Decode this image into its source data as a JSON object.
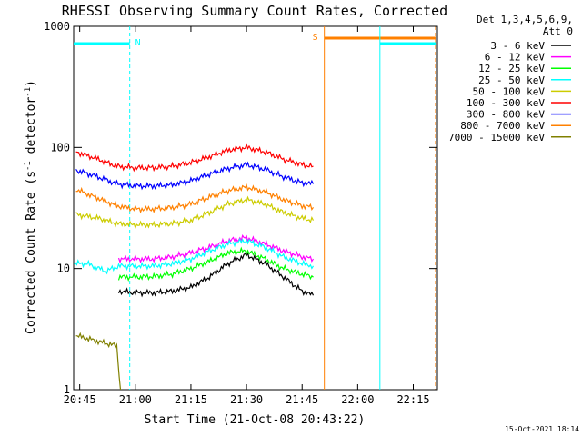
{
  "chart_data": {
    "type": "line",
    "title": "RHESSI Observing Summary Count Rates, Corrected",
    "xlabel": "Start Time (21-Oct-08 20:43:22)",
    "ylabel": "Corrected Count Rate (s-1 detector-1)",
    "ylabel_parts": {
      "base": "Corrected Count Rate (s",
      "exp1": "-1",
      "mid": " detector",
      "exp2": "-1",
      "end": ")"
    },
    "y_scale": "log",
    "ylim": [
      1,
      1000
    ],
    "xlim": [
      "20:43:22",
      "22:21:30"
    ],
    "x_ticks": [
      "20:45",
      "21:00",
      "21:15",
      "21:30",
      "21:45",
      "22:00",
      "22:15"
    ],
    "y_ticks": [
      "1",
      "10",
      "100",
      "1000"
    ],
    "legend_header": [
      "Det 1,3,4,5,6,9,",
      "Att 0"
    ],
    "legend_position": "right",
    "footer": "15-Oct-2021 18:14",
    "flags": {
      "night_label": "N",
      "saa_label": "S",
      "night_color": "#00ffff",
      "saa_color": "#ff8000",
      "night_interval": [
        "20:43:22",
        "20:58:30"
      ],
      "saa_interval": [
        "21:51:00",
        "22:21:00"
      ],
      "night_start_2": "22:06:00"
    },
    "series": [
      {
        "name": "3 - 6 keV",
        "color": "#000000",
        "x": [
          "20:55:30",
          "21:00",
          "21:05",
          "21:10",
          "21:15",
          "21:20",
          "21:25",
          "21:30",
          "21:35",
          "21:40",
          "21:45",
          "21:48"
        ],
        "y": [
          6.5,
          6.3,
          6.3,
          6.5,
          7,
          8.5,
          11,
          13,
          11,
          8.5,
          6.5,
          6
        ]
      },
      {
        "name": "6 - 12 keV",
        "color": "#ff00ff",
        "x": [
          "20:55:30",
          "21:00",
          "21:05",
          "21:10",
          "21:15",
          "21:20",
          "21:25",
          "21:30",
          "21:35",
          "21:40",
          "21:45",
          "21:48"
        ],
        "y": [
          12,
          12,
          12,
          12.5,
          13.5,
          15,
          17,
          18,
          16,
          14,
          12.5,
          12
        ]
      },
      {
        "name": "12 - 25 keV",
        "color": "#00ff00",
        "x": [
          "20:55:30",
          "21:00",
          "21:05",
          "21:10",
          "21:15",
          "21:20",
          "21:25",
          "21:30",
          "21:35",
          "21:40",
          "21:45",
          "21:48"
        ],
        "y": [
          8.5,
          8.5,
          8.6,
          9,
          10,
          11.5,
          13.5,
          14,
          12,
          10,
          9,
          8.5
        ]
      },
      {
        "name": "25 - 50 keV",
        "color": "#00ffff",
        "x": [
          "20:43:30",
          "20:47",
          "20:52",
          "20:55:30",
          "21:00",
          "21:05",
          "21:10",
          "21:15",
          "21:20",
          "21:25",
          "21:30",
          "21:35",
          "21:40",
          "21:45",
          "21:48"
        ],
        "y": [
          11,
          11,
          9.5,
          10.5,
          10.5,
          10.5,
          11,
          12,
          14,
          16,
          17,
          15,
          12.5,
          11,
          10.5
        ]
      },
      {
        "name": "50 - 100 keV",
        "color": "#cccc00",
        "x": [
          "20:44",
          "20:50",
          "20:55",
          "21:00",
          "21:05",
          "21:10",
          "21:15",
          "21:20",
          "21:25",
          "21:30",
          "21:35",
          "21:40",
          "21:45",
          "21:48"
        ],
        "y": [
          28,
          26,
          23.5,
          23,
          23,
          23.5,
          25,
          29,
          34,
          37,
          34,
          29,
          26,
          25
        ]
      },
      {
        "name": "100 - 300 keV",
        "color": "#ff0000",
        "x": [
          "20:44",
          "20:50",
          "20:55",
          "21:00",
          "21:05",
          "21:10",
          "21:15",
          "21:20",
          "21:25",
          "21:30",
          "21:35",
          "21:40",
          "21:45",
          "21:48"
        ],
        "y": [
          92,
          80,
          70,
          68,
          68,
          70,
          75,
          84,
          95,
          100,
          92,
          80,
          72,
          70
        ]
      },
      {
        "name": "300 - 800 keV",
        "color": "#0000ff",
        "x": [
          "20:44",
          "20:50",
          "20:55",
          "21:00",
          "21:05",
          "21:10",
          "21:15",
          "21:20",
          "21:25",
          "21:30",
          "21:35",
          "21:40",
          "21:45",
          "21:48"
        ],
        "y": [
          65,
          57,
          50,
          48,
          48,
          49,
          53,
          60,
          67,
          72,
          66,
          57,
          51,
          50
        ]
      },
      {
        "name": "800 - 7000 keV",
        "color": "#ff8000",
        "x": [
          "20:44",
          "20:50",
          "20:55",
          "21:00",
          "21:05",
          "21:10",
          "21:15",
          "21:20",
          "21:25",
          "21:30",
          "21:35",
          "21:40",
          "21:45",
          "21:48"
        ],
        "y": [
          45,
          38,
          33,
          31,
          31,
          32,
          34,
          39,
          44,
          47,
          43,
          37,
          33,
          32
        ]
      },
      {
        "name": "7000 - 15000 keV",
        "color": "#808000",
        "x": [
          "20:44",
          "20:50",
          "20:55",
          "20:56"
        ],
        "y": [
          2.8,
          2.5,
          2.3,
          1
        ]
      }
    ]
  }
}
